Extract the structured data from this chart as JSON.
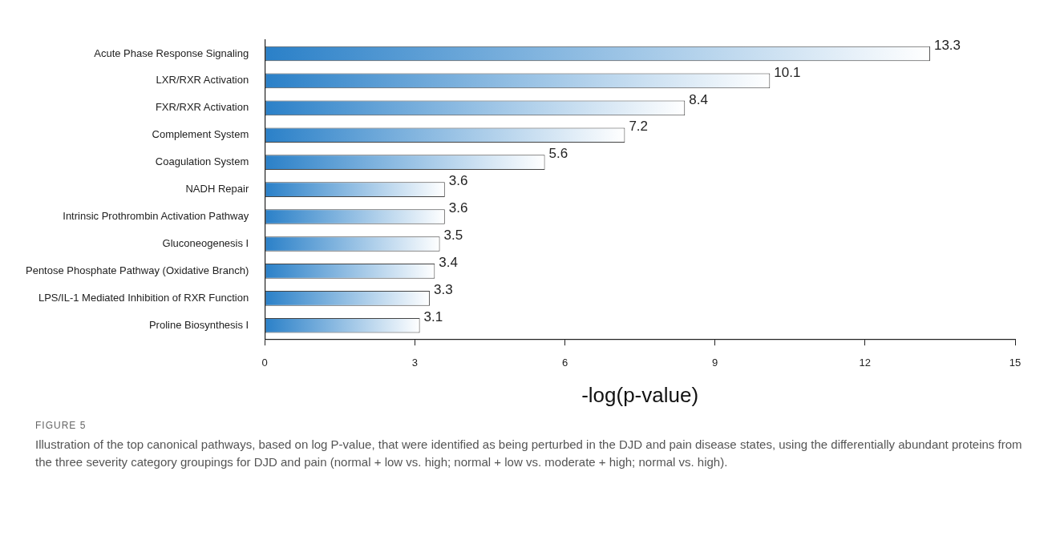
{
  "chart_data": {
    "type": "bar",
    "orientation": "horizontal",
    "xlabel": "-log(p-value)",
    "categories": [
      "Acute Phase Response Signaling",
      "LXR/RXR Activation",
      "FXR/RXR Activation",
      "Complement System",
      "Coagulation System",
      "NADH Repair",
      "Intrinsic Prothrombin Activation Pathway",
      "Gluconeogenesis I",
      "Pentose Phosphate Pathway (Oxidative Branch)",
      "LPS/IL-1 Mediated Inhibition of RXR Function",
      "Proline Biosynthesis I"
    ],
    "values": [
      13.3,
      10.1,
      8.4,
      7.2,
      5.6,
      3.6,
      3.6,
      3.5,
      3.4,
      3.3,
      3.1
    ],
    "color": "#2a80c8",
    "xlim": [
      0,
      15
    ],
    "xticks": [
      0,
      3,
      6,
      9,
      12,
      15
    ],
    "grid": false,
    "legend": false,
    "data_labels": true,
    "annotations": [
      "FIGURE 5",
      "Illustration of the top canonical pathways, based on log P-value, that were identified as being perturbed in the DJD and pain disease states, using the differentially abundant proteins from the three severity category groupings for DJD and pain (normal + low vs. high; normal + low vs. moderate + high; normal vs. high)."
    ]
  }
}
